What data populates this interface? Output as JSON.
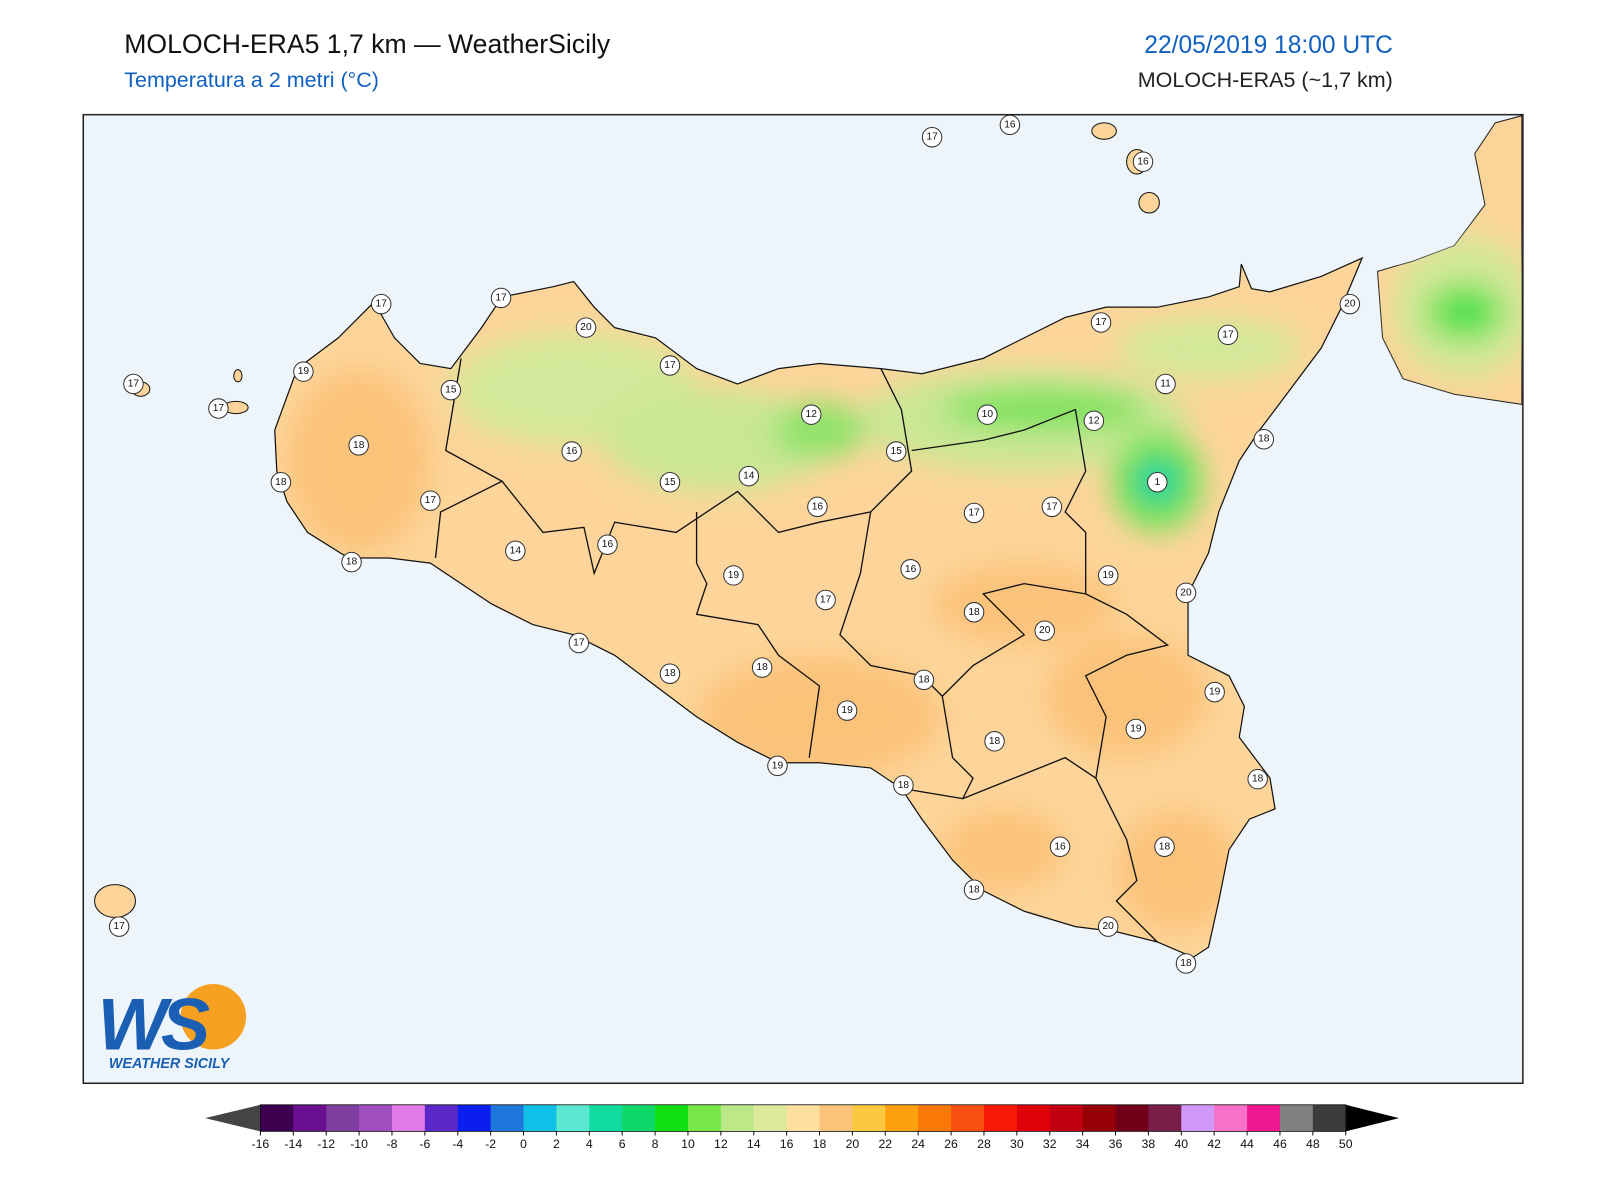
{
  "header": {
    "title": "MOLOCH-ERA5 1,7 km — WeatherSicily",
    "subtitle": "Temperatura a 2 metri (°C)",
    "date": "22/05/2019 18:00 UTC",
    "model": "MOLOCH-ERA5 (~1,7 km)"
  },
  "logo": {
    "mark": "WS",
    "name": "WEATHER SICILY"
  },
  "stations": [
    17,
    16,
    16,
    17,
    17,
    20,
    17,
    20,
    17,
    17,
    19,
    17,
    15,
    17,
    11,
    12,
    10,
    12,
    18,
    16,
    15,
    18,
    18,
    15,
    14,
    1,
    17,
    16,
    17,
    17,
    16,
    14,
    18,
    19,
    16,
    19,
    20,
    17,
    18,
    20,
    17,
    18,
    18,
    18,
    19,
    19,
    19,
    18,
    19,
    18,
    18,
    16,
    18,
    18,
    17,
    20,
    18
  ],
  "colorbar": {
    "ticks": [
      -16,
      -14,
      -12,
      -10,
      -8,
      -6,
      -4,
      -2,
      0,
      2,
      4,
      6,
      8,
      10,
      12,
      14,
      16,
      18,
      20,
      22,
      24,
      26,
      28,
      30,
      32,
      34,
      36,
      38,
      40,
      42,
      44,
      46,
      48,
      50
    ],
    "colors": [
      "#3d0050",
      "#6a0f8f",
      "#7e3fa0",
      "#a04ec0",
      "#e07be8",
      "#5a28c8",
      "#0a1ef0",
      "#1e78dc",
      "#10c0e6",
      "#5ae8d2",
      "#10dca0",
      "#10d868",
      "#10e010",
      "#78e848",
      "#bce888",
      "#dcea9e",
      "#fde0a0",
      "#fbc37a",
      "#fcc840",
      "#fca010",
      "#f87808",
      "#f85010",
      "#f81808",
      "#e00008",
      "#c00010",
      "#980008",
      "#700018",
      "#781c48",
      "#d098f8",
      "#f870c8",
      "#f01890",
      "#808080",
      "#3c3c3c"
    ],
    "under": "#444444",
    "over": "#000000"
  }
}
